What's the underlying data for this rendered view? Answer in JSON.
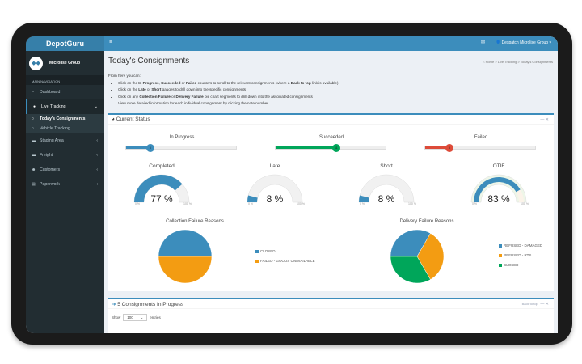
{
  "app": {
    "brand": "DepotGuru",
    "org": "Microlise Group",
    "account": "Despatch Microlise Group"
  },
  "sidebar": {
    "heading": "MAIN NAVIGATION",
    "items": [
      {
        "label": "Dashboard",
        "icon": "dashboard-icon"
      },
      {
        "label": "Live Tracking",
        "icon": "map-marker-icon",
        "sub": [
          {
            "label": "Today's Consignments"
          },
          {
            "label": "Vehicle Tracking"
          }
        ]
      },
      {
        "label": "Staging Area",
        "icon": "truck-icon"
      },
      {
        "label": "Freight",
        "icon": "truck-icon"
      },
      {
        "label": "Customers",
        "icon": "users-icon"
      },
      {
        "label": "Paperwork",
        "icon": "file-icon"
      }
    ]
  },
  "page": {
    "title": "Today's Consignments",
    "breadcrumb": [
      "Home",
      "Live Tracking",
      "Today's Consignments"
    ],
    "intro": "From here you can:",
    "bullets": [
      [
        "Click on the ",
        "In Progress",
        ", ",
        "Succeeded",
        " or ",
        "Failed",
        " counters to scroll to the relevant consignments (where a ",
        "Back to top",
        " link is available)"
      ],
      [
        "Click on the ",
        "Late",
        " or ",
        "Short",
        " gauges to drill down into the specific consignments"
      ],
      [
        "Click on any ",
        "Collection Failure",
        " or ",
        "Delivery Failure",
        " pie chart segments to drill down into the associated consignments"
      ],
      [
        "View more detailed information for each individual consignment by clicking the note number"
      ]
    ]
  },
  "status": {
    "title": "Current Status",
    "counters": [
      {
        "label": "In Progress",
        "value": "5",
        "fraction": 0.22,
        "color": "#3c8dbc"
      },
      {
        "label": "Succeeded",
        "value": "11",
        "fraction": 0.55,
        "color": "#00a65a"
      },
      {
        "label": "Failed",
        "value": "3",
        "fraction": 0.22,
        "color": "#dd4b39"
      }
    ],
    "gauges": [
      {
        "label": "Completed",
        "value": 77,
        "text": "77 %"
      },
      {
        "label": "Late",
        "value": 8,
        "text": "8 %"
      },
      {
        "label": "Short",
        "value": 8,
        "text": "8 %"
      },
      {
        "label": "OTIF",
        "value": 83,
        "text": "83 %"
      }
    ],
    "gauge_min": "0 %",
    "gauge_max": "100 %"
  },
  "chart_data": [
    {
      "type": "pie",
      "title": "Collection Failure Reasons",
      "categories": [
        "CLOSED",
        "FAILED - GOODS UNAVAILABLE"
      ],
      "values": [
        1,
        1
      ],
      "colors": [
        "#3c8dbc",
        "#f39c12"
      ],
      "legend": "right"
    },
    {
      "type": "pie",
      "title": "Delivery Failure Reasons",
      "categories": [
        "REFUSED - DAMAGED",
        "REFUSED - RTS",
        "CLOSED"
      ],
      "values": [
        1,
        1,
        1
      ],
      "colors": [
        "#3c8dbc",
        "#f39c12",
        "#00a65a"
      ],
      "legend": "right"
    }
  ],
  "progress_box": {
    "title": "5 Consignments In Progress",
    "back_to_top": "Back to top",
    "show": "Show",
    "entries": "entries",
    "page_size": "100"
  }
}
